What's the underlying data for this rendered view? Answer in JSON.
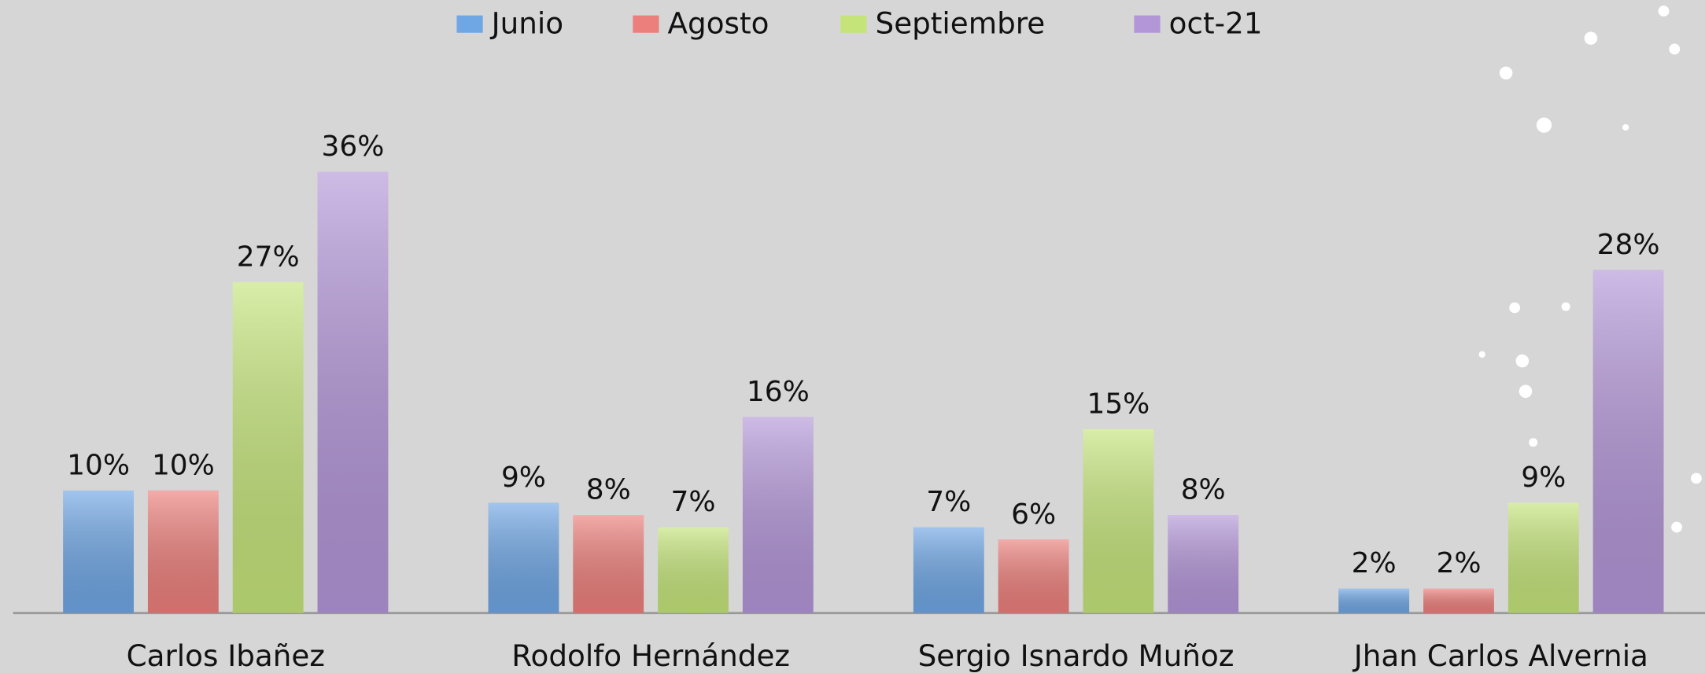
{
  "chart_data": {
    "type": "bar",
    "categories": [
      "Carlos Ibañez",
      "Rodolfo Hernández",
      "Sergio Isnardo Muñoz",
      "Jhan Carlos Alvernia"
    ],
    "series": [
      {
        "name": "Junio",
        "color": "#6fa6e4",
        "values": [
          10,
          9,
          7,
          2
        ],
        "value_labels": [
          "10%",
          "9%",
          "7%",
          "2%"
        ]
      },
      {
        "name": "Agosto",
        "color": "#ec7f7b",
        "values": [
          10,
          8,
          6,
          2
        ],
        "value_labels": [
          "10%",
          "8%",
          "6%",
          "2%"
        ]
      },
      {
        "name": "Septiembre",
        "color": "#c4e47a",
        "values": [
          27,
          7,
          15,
          9
        ],
        "value_labels": [
          "27%",
          "7%",
          "15%",
          "9%"
        ]
      },
      {
        "name": "oct-21",
        "color": "#b396d8",
        "values": [
          36,
          16,
          8,
          28
        ],
        "value_labels": [
          "36%",
          "16%",
          "8%",
          "28%"
        ]
      }
    ],
    "legend": "top"
  }
}
